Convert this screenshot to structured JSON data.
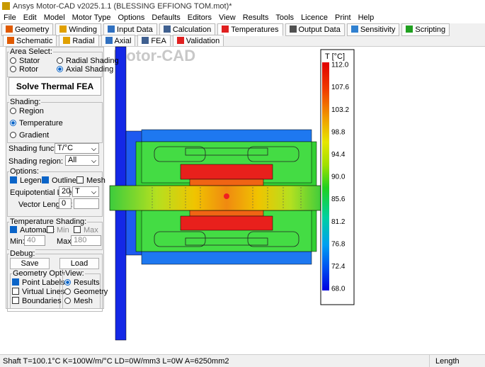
{
  "title_bar": {
    "title": "Ansys Motor-CAD v2025.1.1 (BLESSING EFFIONG TOM.mot)*"
  },
  "menu": [
    "File",
    "Edit",
    "Model",
    "Motor Type",
    "Options",
    "Defaults",
    "Editors",
    "View",
    "Results",
    "Tools",
    "Licence",
    "Print",
    "Help"
  ],
  "tabs": [
    {
      "label": "Geometry",
      "selected": false
    },
    {
      "label": "Winding",
      "selected": false
    },
    {
      "label": "Input Data",
      "selected": false
    },
    {
      "label": "Calculation",
      "selected": false
    },
    {
      "label": "Temperatures",
      "selected": true
    },
    {
      "label": "Output Data",
      "selected": false
    },
    {
      "label": "Sensitivity",
      "selected": false
    },
    {
      "label": "Scripting",
      "selected": false
    }
  ],
  "subtabs": [
    {
      "label": "Schematic",
      "selected": false
    },
    {
      "label": "Radial",
      "selected": false
    },
    {
      "label": "Axial",
      "selected": false
    },
    {
      "label": "FEA",
      "selected": true
    },
    {
      "label": "Validation",
      "selected": false
    }
  ],
  "watermark": "Motor-CAD",
  "panel": {
    "area_select": {
      "label": "Area Select:",
      "options": [
        {
          "label": "Stator",
          "checked": false
        },
        {
          "label": "Radial Shading",
          "checked": false
        },
        {
          "label": "Rotor",
          "checked": false
        },
        {
          "label": "Axial Shading",
          "checked": true
        }
      ]
    },
    "solve_button": "Solve Thermal FEA",
    "shading": {
      "label": "Shading:",
      "options": [
        {
          "label": "Region",
          "checked": false
        },
        {
          "label": "Temperature",
          "checked": true
        },
        {
          "label": "Gradient",
          "checked": false
        }
      ]
    },
    "shading_function": {
      "label": "Shading function:",
      "value": "T/°C"
    },
    "shading_region": {
      "label": "Shading region:",
      "value": "All"
    },
    "options": {
      "label": "Options:",
      "checks": [
        {
          "label": "Legend",
          "checked": true
        },
        {
          "label": "Outlines",
          "checked": true
        },
        {
          "label": "Mesh",
          "checked": false
        }
      ],
      "equipotential": {
        "label": "Equipotential Lines:",
        "value": "20",
        "select": "T"
      },
      "vector": {
        "label": "Vector Lengths:",
        "value": "0"
      }
    },
    "temperature_shading": {
      "label": "Temperature Shading:",
      "checks": [
        {
          "label": "Automatic",
          "checked": true
        },
        {
          "label": "Min",
          "checked": false
        },
        {
          "label": "Max",
          "checked": false
        }
      ],
      "min": {
        "label": "Min:",
        "value": "40"
      },
      "max": {
        "label": "Max:",
        "value": "180"
      }
    },
    "debug": {
      "label": "Debug:",
      "buttons": [
        "Save",
        "Load"
      ],
      "geometry_options": {
        "label": "Geometry Options:",
        "checks": [
          {
            "label": "Point Labels",
            "checked": true
          },
          {
            "label": "Virtual Lines",
            "checked": false
          },
          {
            "label": "Boundaries",
            "checked": false
          }
        ]
      },
      "view": {
        "label": "View:",
        "options": [
          {
            "label": "Results",
            "checked": true
          },
          {
            "label": "Geometry",
            "checked": false
          },
          {
            "label": "Mesh",
            "checked": false
          }
        ]
      }
    }
  },
  "legend": {
    "title": "T [°C]",
    "ticks": [
      "112.0",
      "107.6",
      "103.2",
      "98.8",
      "94.4",
      "90.0",
      "85.6",
      "81.2",
      "76.8",
      "72.4",
      "68.0"
    ]
  },
  "status_bar": {
    "info": "Shaft  T=100.1°C  K=100W/m/°C  LD=0W/mm3  L=0W  A=6250mm2",
    "length": "Length"
  }
}
